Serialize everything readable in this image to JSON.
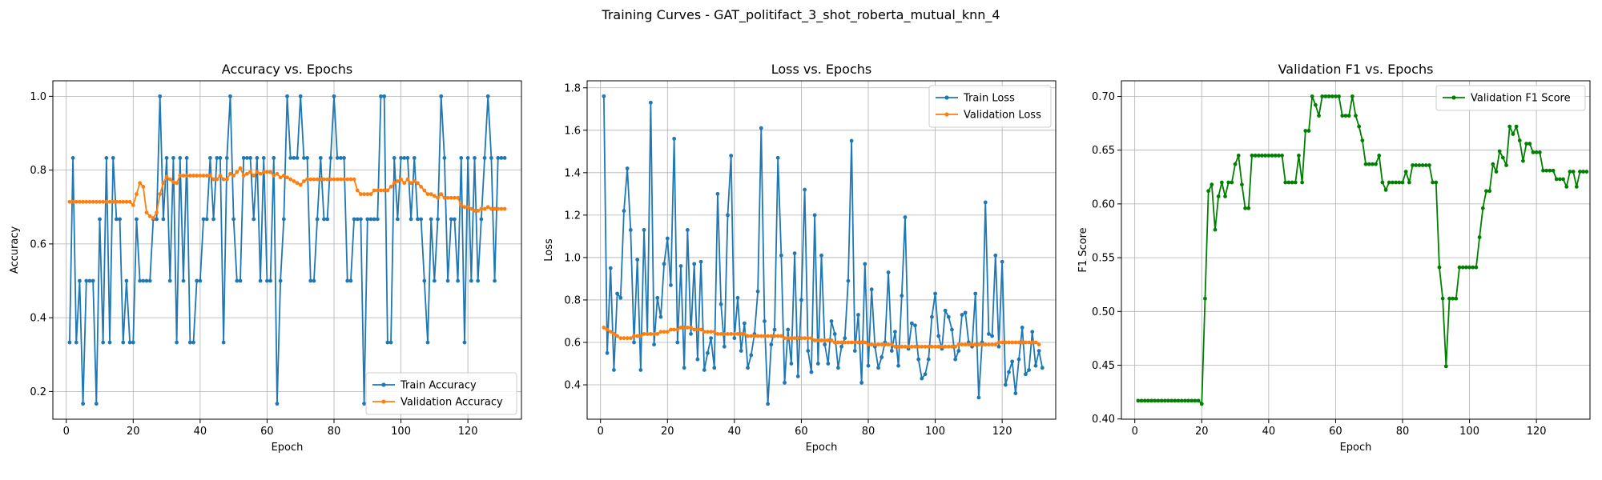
{
  "suptitle": "Training Curves - GAT_politifact_3_shot_roberta_mutual_knn_4",
  "colors": {
    "train": "#1f77b4",
    "validation": "#ff7f0e",
    "f1": "#008000",
    "grid": "#b0b0b0"
  },
  "chart_data": [
    {
      "type": "line",
      "title": "Accuracy vs. Epochs",
      "xlabel": "Epoch",
      "ylabel": "Accuracy",
      "xlim": [
        -4,
        136
      ],
      "ylim": [
        0.125,
        1.042
      ],
      "xticks": [
        0,
        20,
        40,
        60,
        80,
        100,
        120
      ],
      "yticks": [
        0.2,
        0.4,
        0.6,
        0.8,
        1.0
      ],
      "ytick_labels": [
        "0.2",
        "0.4",
        "0.6",
        "0.8",
        "1.0"
      ],
      "grid": true,
      "legend_position": "lower-right",
      "series": [
        {
          "name": "Train Accuracy",
          "color": "#1f77b4",
          "values": [
            0.333,
            0.833,
            0.333,
            0.5,
            0.167,
            0.5,
            0.5,
            0.5,
            0.167,
            0.667,
            0.333,
            0.833,
            0.333,
            0.833,
            0.667,
            0.667,
            0.333,
            0.5,
            0.333,
            0.333,
            0.667,
            0.5,
            0.5,
            0.5,
            0.5,
            0.667,
            0.667,
            1.0,
            0.667,
            0.833,
            0.5,
            0.833,
            0.333,
            0.833,
            0.5,
            0.833,
            0.333,
            0.333,
            0.5,
            0.5,
            0.667,
            0.667,
            0.833,
            0.667,
            0.833,
            0.833,
            0.333,
            0.833,
            1.0,
            0.667,
            0.5,
            0.5,
            0.833,
            0.833,
            0.833,
            0.667,
            0.833,
            0.5,
            0.833,
            0.5,
            0.5,
            0.833,
            0.167,
            0.5,
            0.667,
            1.0,
            0.833,
            0.833,
            0.833,
            1.0,
            0.833,
            0.833,
            0.5,
            0.5,
            0.667,
            0.833,
            0.667,
            0.667,
            0.833,
            1.0,
            0.833,
            0.833,
            0.833,
            0.5,
            0.5,
            0.667,
            0.667,
            0.667,
            0.167,
            0.667,
            0.667,
            0.667,
            0.667,
            1.0,
            1.0,
            0.333,
            0.333,
            0.833,
            0.667,
            0.833,
            0.833,
            0.833,
            0.667,
            0.833,
            0.667,
            0.667,
            0.5,
            0.333,
            0.667,
            0.5,
            0.667,
            1.0,
            0.833,
            0.5,
            0.667,
            0.667,
            0.5,
            0.833,
            0.333,
            0.833,
            0.5,
            0.833,
            0.5,
            0.667,
            0.833,
            1.0,
            0.833,
            0.5,
            0.833,
            0.833,
            0.833
          ]
        },
        {
          "name": "Validation Accuracy",
          "color": "#ff7f0e",
          "values": [
            0.714,
            0.714,
            0.714,
            0.714,
            0.714,
            0.714,
            0.714,
            0.714,
            0.714,
            0.714,
            0.714,
            0.714,
            0.714,
            0.714,
            0.714,
            0.714,
            0.714,
            0.714,
            0.714,
            0.705,
            0.735,
            0.765,
            0.755,
            0.685,
            0.675,
            0.67,
            0.685,
            0.735,
            0.765,
            0.782,
            0.775,
            0.768,
            0.765,
            0.785,
            0.785,
            0.785,
            0.785,
            0.785,
            0.785,
            0.785,
            0.785,
            0.785,
            0.785,
            0.775,
            0.775,
            0.785,
            0.775,
            0.775,
            0.79,
            0.785,
            0.795,
            0.805,
            0.785,
            0.79,
            0.795,
            0.785,
            0.795,
            0.79,
            0.795,
            0.795,
            0.795,
            0.785,
            0.79,
            0.78,
            0.785,
            0.78,
            0.775,
            0.77,
            0.765,
            0.76,
            0.77,
            0.775,
            0.775,
            0.775,
            0.775,
            0.775,
            0.775,
            0.775,
            0.775,
            0.775,
            0.775,
            0.775,
            0.775,
            0.775,
            0.775,
            0.775,
            0.745,
            0.735,
            0.735,
            0.735,
            0.735,
            0.745,
            0.745,
            0.745,
            0.745,
            0.745,
            0.755,
            0.765,
            0.77,
            0.775,
            0.765,
            0.775,
            0.765,
            0.77,
            0.765,
            0.755,
            0.745,
            0.735,
            0.735,
            0.73,
            0.725,
            0.735,
            0.725,
            0.725,
            0.725,
            0.725,
            0.725,
            0.705,
            0.7,
            0.7,
            0.695,
            0.69,
            0.69,
            0.695,
            0.695,
            0.7,
            0.695,
            0.695,
            0.695,
            0.695,
            0.695
          ]
        }
      ]
    },
    {
      "type": "line",
      "title": "Loss vs. Epochs",
      "xlabel": "Epoch",
      "ylabel": "Loss",
      "xlim": [
        -4,
        136
      ],
      "ylim": [
        0.238,
        1.833
      ],
      "xticks": [
        0,
        20,
        40,
        60,
        80,
        100,
        120
      ],
      "yticks": [
        0.4,
        0.6,
        0.8,
        1.0,
        1.2,
        1.4,
        1.6,
        1.8
      ],
      "ytick_labels": [
        "0.4",
        "0.6",
        "0.8",
        "1.0",
        "1.2",
        "1.4",
        "1.6",
        "1.8"
      ],
      "grid": true,
      "legend_position": "upper-right",
      "series": [
        {
          "name": "Train Loss",
          "color": "#1f77b4",
          "values": [
            1.76,
            0.55,
            0.95,
            0.47,
            0.83,
            0.81,
            1.22,
            1.42,
            1.13,
            0.6,
            0.99,
            0.47,
            1.13,
            0.64,
            1.73,
            0.59,
            0.81,
            0.72,
            0.97,
            1.09,
            0.87,
            1.56,
            0.6,
            0.96,
            0.48,
            1.13,
            0.64,
            0.97,
            0.52,
            0.98,
            0.47,
            0.55,
            0.62,
            0.48,
            1.3,
            0.78,
            0.58,
            1.2,
            1.48,
            0.62,
            0.81,
            0.56,
            0.69,
            0.48,
            0.54,
            0.64,
            0.84,
            1.61,
            0.7,
            0.31,
            0.59,
            0.66,
            1.47,
            1.01,
            0.41,
            0.66,
            0.5,
            1.02,
            0.44,
            0.8,
            1.32,
            0.56,
            0.46,
            1.2,
            0.5,
            1.01,
            0.59,
            0.5,
            0.7,
            0.64,
            0.48,
            0.58,
            0.62,
            0.89,
            1.55,
            0.56,
            0.73,
            0.41,
            0.97,
            0.49,
            0.85,
            0.58,
            0.48,
            0.53,
            0.6,
            0.93,
            0.56,
            0.65,
            0.49,
            0.82,
            1.19,
            0.57,
            0.69,
            0.68,
            0.52,
            0.43,
            0.45,
            0.52,
            0.72,
            0.83,
            0.63,
            0.57,
            0.75,
            0.72,
            0.66,
            0.52,
            0.56,
            0.73,
            0.74,
            0.6,
            0.58,
            0.83,
            0.34,
            0.6,
            1.26,
            0.64,
            0.63,
            1.01,
            0.58,
            0.98,
            0.4,
            0.46,
            0.51,
            0.36,
            0.52,
            0.67,
            0.45,
            0.47,
            0.65,
            0.49,
            0.56,
            0.48
          ]
        },
        {
          "name": "Validation Loss",
          "color": "#ff7f0e",
          "values": [
            0.67,
            0.66,
            0.65,
            0.64,
            0.63,
            0.62,
            0.62,
            0.62,
            0.62,
            0.63,
            0.63,
            0.63,
            0.64,
            0.64,
            0.64,
            0.64,
            0.64,
            0.65,
            0.65,
            0.65,
            0.66,
            0.66,
            0.66,
            0.67,
            0.67,
            0.67,
            0.67,
            0.66,
            0.66,
            0.66,
            0.65,
            0.65,
            0.65,
            0.65,
            0.64,
            0.64,
            0.64,
            0.64,
            0.64,
            0.64,
            0.64,
            0.64,
            0.64,
            0.63,
            0.63,
            0.63,
            0.63,
            0.63,
            0.63,
            0.63,
            0.63,
            0.63,
            0.63,
            0.63,
            0.62,
            0.62,
            0.62,
            0.62,
            0.62,
            0.62,
            0.62,
            0.62,
            0.62,
            0.61,
            0.61,
            0.61,
            0.61,
            0.61,
            0.61,
            0.6,
            0.6,
            0.6,
            0.6,
            0.6,
            0.6,
            0.6,
            0.6,
            0.6,
            0.6,
            0.59,
            0.59,
            0.59,
            0.59,
            0.59,
            0.59,
            0.59,
            0.59,
            0.58,
            0.58,
            0.58,
            0.58,
            0.58,
            0.58,
            0.58,
            0.58,
            0.58,
            0.58,
            0.58,
            0.58,
            0.58,
            0.58,
            0.58,
            0.58,
            0.58,
            0.58,
            0.58,
            0.59,
            0.59,
            0.59,
            0.59,
            0.59,
            0.59,
            0.59,
            0.59,
            0.59,
            0.59,
            0.59,
            0.59,
            0.6,
            0.6,
            0.6,
            0.6,
            0.6,
            0.6,
            0.6,
            0.6,
            0.6,
            0.6,
            0.6,
            0.6,
            0.59
          ]
        }
      ]
    },
    {
      "type": "line",
      "title": "Validation F1 vs. Epochs",
      "xlabel": "Epoch",
      "ylabel": "F1 Score",
      "xlim": [
        -4,
        136
      ],
      "ylim": [
        0.3998,
        0.7145
      ],
      "xticks": [
        0,
        20,
        40,
        60,
        80,
        100,
        120
      ],
      "yticks": [
        0.4,
        0.45,
        0.5,
        0.55,
        0.6,
        0.65,
        0.7
      ],
      "ytick_labels": [
        "0.40",
        "0.45",
        "0.50",
        "0.55",
        "0.60",
        "0.65",
        "0.70"
      ],
      "grid": true,
      "legend_position": "upper-right",
      "series": [
        {
          "name": "Validation F1 Score",
          "color": "#008000",
          "values": [
            0.417,
            0.417,
            0.417,
            0.417,
            0.417,
            0.417,
            0.417,
            0.417,
            0.417,
            0.417,
            0.417,
            0.417,
            0.417,
            0.417,
            0.417,
            0.417,
            0.417,
            0.417,
            0.417,
            0.414,
            0.512,
            0.612,
            0.618,
            0.576,
            0.607,
            0.62,
            0.607,
            0.62,
            0.62,
            0.637,
            0.645,
            0.618,
            0.596,
            0.596,
            0.645,
            0.645,
            0.645,
            0.645,
            0.645,
            0.645,
            0.645,
            0.645,
            0.645,
            0.645,
            0.62,
            0.62,
            0.62,
            0.62,
            0.645,
            0.62,
            0.668,
            0.668,
            0.7,
            0.692,
            0.682,
            0.7,
            0.7,
            0.7,
            0.7,
            0.7,
            0.7,
            0.682,
            0.682,
            0.682,
            0.7,
            0.682,
            0.672,
            0.659,
            0.637,
            0.637,
            0.637,
            0.637,
            0.645,
            0.62,
            0.613,
            0.62,
            0.62,
            0.62,
            0.62,
            0.62,
            0.63,
            0.62,
            0.636,
            0.636,
            0.636,
            0.636,
            0.636,
            0.636,
            0.62,
            0.62,
            0.541,
            0.512,
            0.449,
            0.512,
            0.512,
            0.512,
            0.541,
            0.541,
            0.541,
            0.541,
            0.541,
            0.541,
            0.569,
            0.596,
            0.612,
            0.612,
            0.637,
            0.63,
            0.649,
            0.643,
            0.636,
            0.672,
            0.665,
            0.672,
            0.659,
            0.64,
            0.656,
            0.656,
            0.648,
            0.648,
            0.648,
            0.631,
            0.631,
            0.631,
            0.631,
            0.623,
            0.623,
            0.623,
            0.616,
            0.63,
            0.63,
            0.616,
            0.63,
            0.63,
            0.63
          ]
        }
      ]
    }
  ]
}
